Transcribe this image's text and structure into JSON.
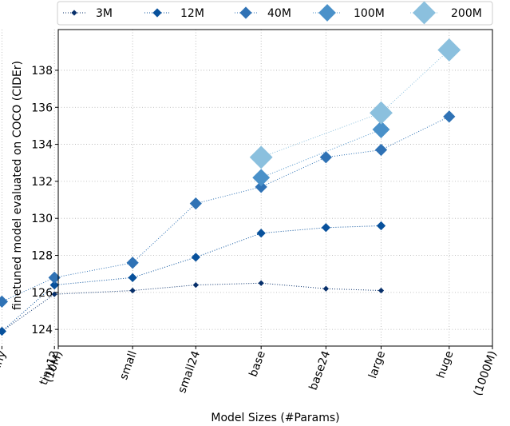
{
  "chart_data": {
    "type": "line",
    "title": "",
    "xlabel": "Model Sizes (#Params)",
    "ylabel": "finetuned model evaluated on COCO (CIDEr)",
    "x_ticks": [
      "(10M)",
      "tiny",
      "tiny12",
      "small",
      "small24",
      "base",
      "base24",
      "large",
      "huge",
      "(1000M)"
    ],
    "x_params_millions": [
      10,
      5.5,
      9.6,
      22,
      43,
      86,
      171,
      307,
      632,
      1000
    ],
    "x_scale": "log",
    "ylim": [
      123.1,
      140.2
    ],
    "y_ticks": [
      124,
      126,
      128,
      130,
      132,
      134,
      136,
      138
    ],
    "grid": true,
    "legend_position": "top",
    "series": [
      {
        "name": "3M",
        "color": "#08306b",
        "marker_scale": 1,
        "points": [
          [
            "tiny",
            123.9
          ],
          [
            "tiny12",
            125.9
          ],
          [
            "small",
            126.1
          ],
          [
            "small24",
            126.4
          ],
          [
            "base",
            126.5
          ],
          [
            "base24",
            126.2
          ],
          [
            "large",
            126.1
          ]
        ]
      },
      {
        "name": "12M",
        "color": "#08519c",
        "marker_scale": 2,
        "points": [
          [
            "tiny",
            123.9
          ],
          [
            "tiny12",
            126.4
          ],
          [
            "small",
            126.8
          ],
          [
            "small24",
            127.9
          ],
          [
            "base",
            129.2
          ],
          [
            "base24",
            129.5
          ],
          [
            "large",
            129.6
          ]
        ]
      },
      {
        "name": "40M",
        "color": "#2f72b5",
        "marker_scale": 3,
        "points": [
          [
            "tiny",
            125.5
          ],
          [
            "tiny12",
            126.8
          ],
          [
            "small",
            127.6
          ],
          [
            "small24",
            130.8
          ],
          [
            "base",
            131.7
          ],
          [
            "base24",
            133.3
          ],
          [
            "large",
            133.7
          ],
          [
            "huge",
            135.5
          ]
        ]
      },
      {
        "name": "100M",
        "color": "#4a91c9",
        "marker_scale": 4,
        "points": [
          [
            "base",
            132.2
          ],
          [
            "large",
            134.8
          ]
        ]
      },
      {
        "name": "200M",
        "color": "#8bc0de",
        "marker_scale": 5,
        "points": [
          [
            "base",
            133.3
          ],
          [
            "large",
            135.7
          ],
          [
            "huge",
            139.1
          ]
        ]
      }
    ]
  }
}
